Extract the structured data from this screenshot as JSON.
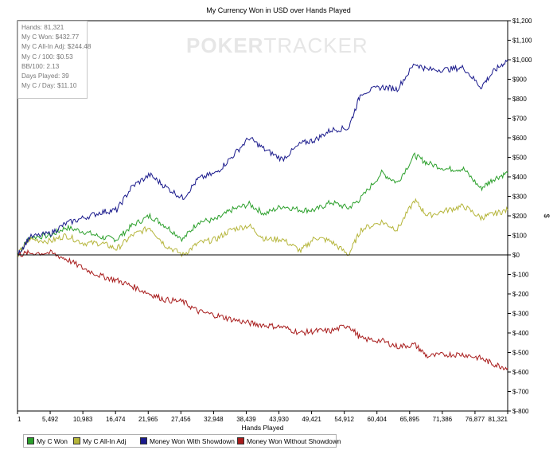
{
  "watermark": {
    "part1": "POKER",
    "part2": "TRACKER"
  },
  "stats": [
    "Hands: 81,321",
    "My C Won: $432.77",
    "My C All-In Adj: $244.48",
    "My C / 100: $0.53",
    "BB/100: 2.13",
    "Days Played: 39",
    "My C / Day: $11.10"
  ],
  "chart_data": {
    "type": "line",
    "title": "My Currency Won in USD over Hands Played",
    "xlabel": "Hands Played",
    "ylabel": "$",
    "xlim": [
      1,
      81321
    ],
    "ylim": [
      -800,
      1200
    ],
    "x_ticks": [
      "1",
      "5,492",
      "10,983",
      "16,474",
      "21,965",
      "27,456",
      "32,948",
      "38,439",
      "43,930",
      "49,421",
      "54,912",
      "60,404",
      "65,895",
      "71,386",
      "76,877",
      "81,321"
    ],
    "y_ticks": [
      "$1,200",
      "$1,100",
      "$1,000",
      "$900",
      "$800",
      "$700",
      "$600",
      "$500",
      "$400",
      "$300",
      "$200",
      "$100",
      "$0",
      "$-100",
      "$-200",
      "$-300",
      "$-400",
      "$-500",
      "$-600",
      "$-700",
      "$-800"
    ],
    "grid": false,
    "legend_position": "bottom-left",
    "series": [
      {
        "name": "My C Won",
        "color": "#2ca02c",
        "x": [
          1,
          2000,
          5492,
          8000,
          10983,
          14000,
          16474,
          19000,
          21965,
          24500,
          27456,
          30000,
          32948,
          35500,
          38439,
          41000,
          43930,
          47000,
          49421,
          52000,
          54912,
          57000,
          60404,
          63000,
          65895,
          68000,
          71386,
          74000,
          76877,
          79000,
          81321
        ],
        "y": [
          0,
          90,
          100,
          140,
          120,
          90,
          80,
          150,
          200,
          150,
          80,
          170,
          180,
          230,
          260,
          210,
          250,
          230,
          230,
          270,
          240,
          290,
          420,
          370,
          510,
          470,
          440,
          440,
          340,
          390,
          420
        ]
      },
      {
        "name": "My C All-In Adj",
        "color": "#b5b53a",
        "x": [
          1,
          2000,
          5492,
          8000,
          10983,
          14000,
          16474,
          19000,
          21965,
          24500,
          27456,
          30000,
          32948,
          35500,
          38439,
          41000,
          43930,
          47000,
          49421,
          52000,
          54912,
          57000,
          60404,
          63000,
          65895,
          68000,
          71386,
          74000,
          76877,
          79000,
          81321
        ],
        "y": [
          0,
          80,
          70,
          100,
          60,
          60,
          30,
          100,
          140,
          50,
          0,
          60,
          80,
          130,
          150,
          80,
          80,
          20,
          90,
          70,
          0,
          130,
          170,
          130,
          280,
          200,
          230,
          250,
          190,
          210,
          230
        ]
      },
      {
        "name": "Money Won With Showdown",
        "color": "#1a1a8c",
        "x": [
          1,
          2000,
          5492,
          8000,
          10983,
          14000,
          16474,
          19000,
          21965,
          24500,
          27456,
          30000,
          32948,
          35500,
          38439,
          41000,
          43930,
          47000,
          49421,
          52000,
          54912,
          57000,
          60404,
          63000,
          65895,
          68000,
          71386,
          74000,
          76877,
          79000,
          81321
        ],
        "y": [
          0,
          90,
          110,
          160,
          190,
          220,
          230,
          350,
          410,
          350,
          290,
          390,
          420,
          500,
          600,
          540,
          490,
          570,
          590,
          640,
          650,
          830,
          860,
          850,
          980,
          950,
          950,
          960,
          860,
          940,
          1000
        ]
      },
      {
        "name": "Money Won Without Showdown",
        "color": "#a81c1c",
        "x": [
          1,
          2000,
          5492,
          8000,
          10983,
          14000,
          16474,
          19000,
          21965,
          24500,
          27456,
          30000,
          32948,
          35500,
          38439,
          41000,
          43930,
          47000,
          49421,
          52000,
          54912,
          57000,
          60404,
          63000,
          65895,
          68000,
          71386,
          74000,
          76877,
          79000,
          81321
        ],
        "y": [
          0,
          10,
          10,
          -20,
          -70,
          -110,
          -130,
          -160,
          -200,
          -230,
          -240,
          -290,
          -310,
          -330,
          -350,
          -360,
          -370,
          -400,
          -390,
          -390,
          -360,
          -430,
          -440,
          -470,
          -460,
          -520,
          -510,
          -510,
          -530,
          -560,
          -580
        ]
      }
    ]
  }
}
